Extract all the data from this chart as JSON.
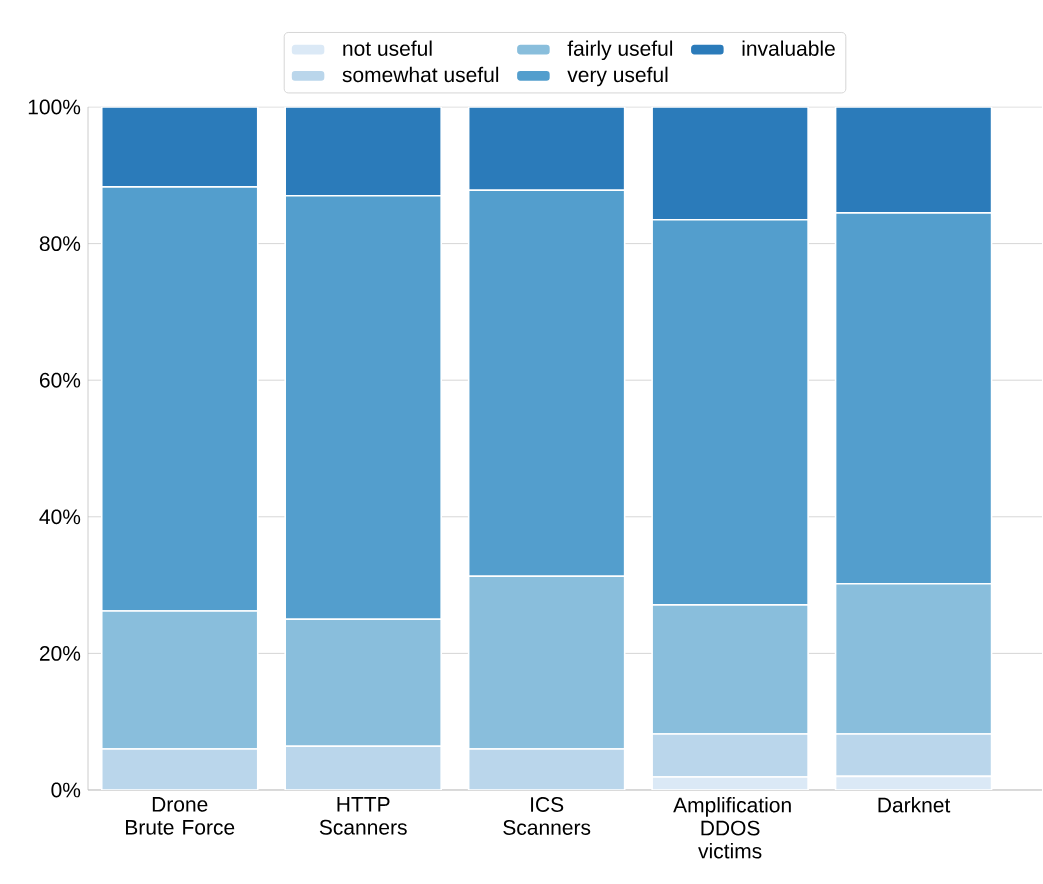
{
  "chart_data": {
    "type": "bar",
    "stacked": true,
    "categories": [
      "Drone Brute Force",
      "HTTP Scanners",
      "ICS Scanners",
      "Amplification DDOS victims",
      "Darknet"
    ],
    "series": [
      {
        "name": "not useful",
        "color": "#dbe9f6",
        "values": [
          0,
          0,
          0,
          1.9,
          2.0
        ]
      },
      {
        "name": "somewhat useful",
        "color": "#bad6eb",
        "values": [
          6.0,
          6.4,
          6.0,
          6.3,
          6.2
        ]
      },
      {
        "name": "fairly useful",
        "color": "#89bedc",
        "values": [
          20.2,
          18.6,
          25.3,
          18.9,
          22.0
        ]
      },
      {
        "name": "very useful",
        "color": "#539ecd",
        "values": [
          62.1,
          62.0,
          56.5,
          56.4,
          54.3
        ]
      },
      {
        "name": "invaluable",
        "color": "#2b7bba",
        "values": [
          11.7,
          13.0,
          12.2,
          16.5,
          15.5
        ]
      }
    ],
    "ylim": [
      0,
      100
    ],
    "yticks": [
      {
        "value": 0,
        "label": "0%"
      },
      {
        "value": 20,
        "label": "20%"
      },
      {
        "value": 40,
        "label": "40%"
      },
      {
        "value": 60,
        "label": "60%"
      },
      {
        "value": 80,
        "label": "80%"
      },
      {
        "value": 100,
        "label": "100%"
      }
    ],
    "grid": "y",
    "legend": "top"
  }
}
